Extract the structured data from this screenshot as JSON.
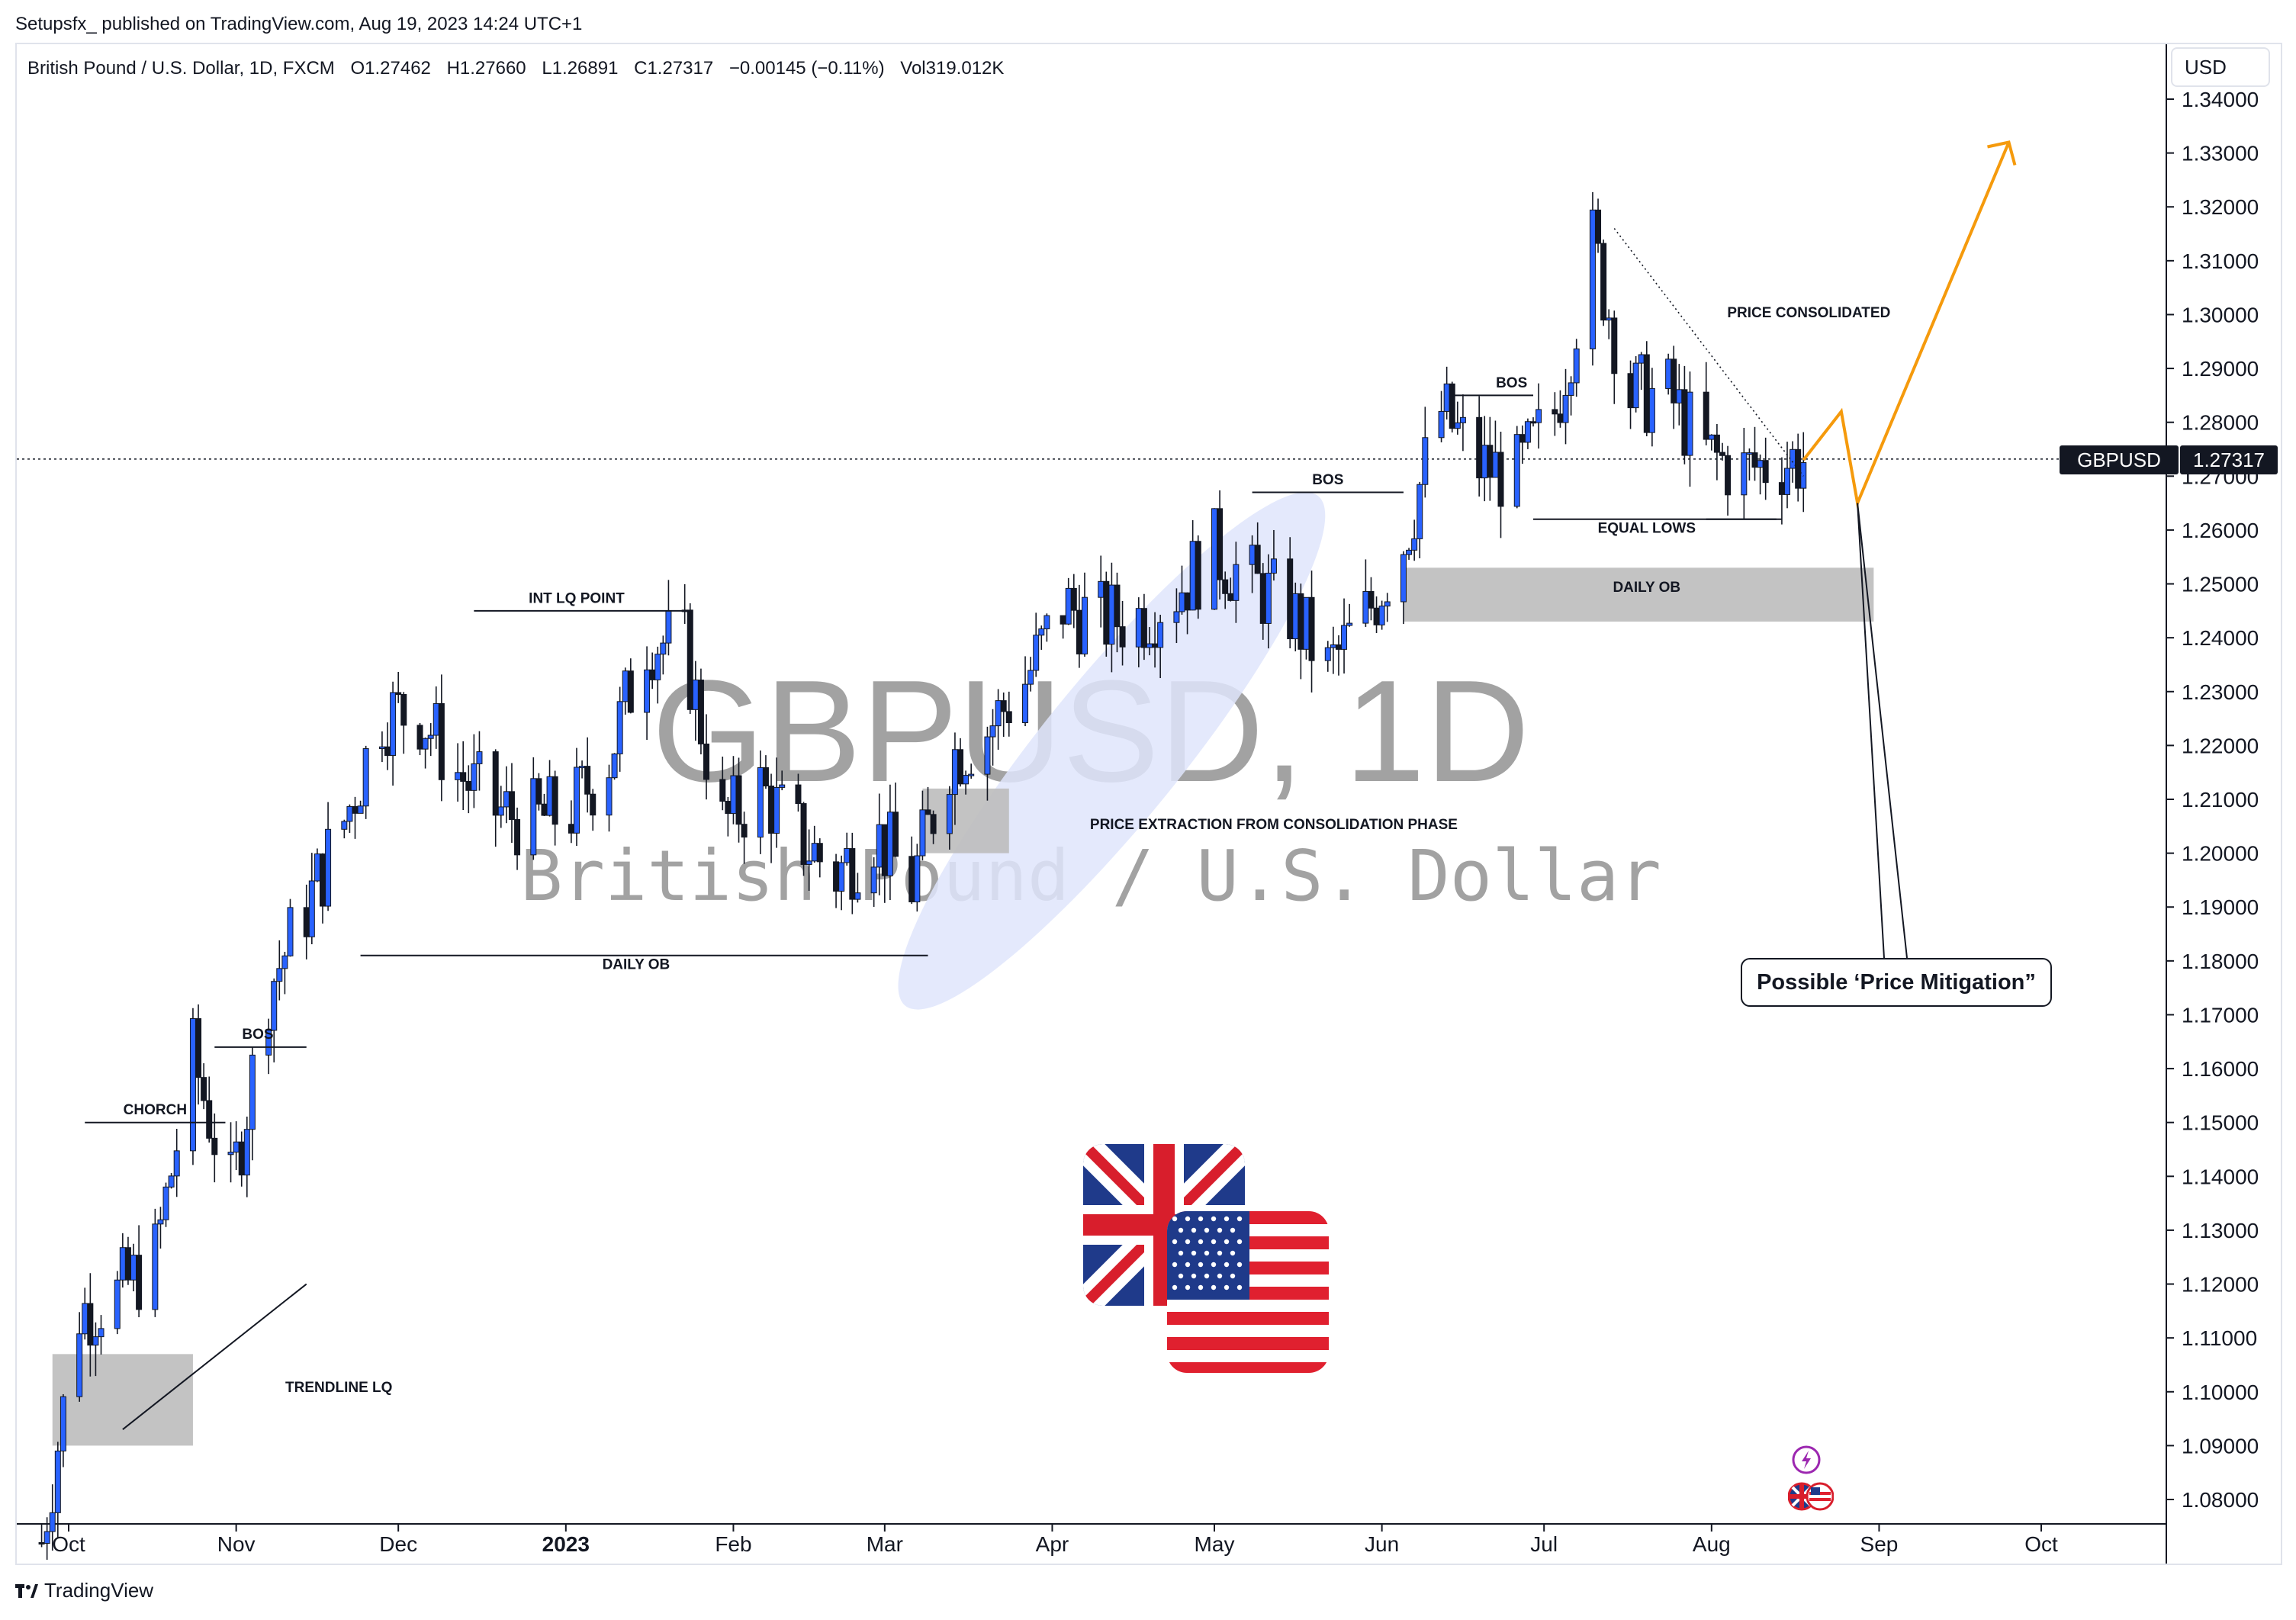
{
  "header": {
    "published_line": "Setupsfx_ published on TradingView.com, Aug 19, 2023 14:24 UTC+1"
  },
  "legend": {
    "symbol_name": "British Pound / U.S. Dollar, 1D, FXCM",
    "open": "O1.27462",
    "high": "H1.27660",
    "low": "L1.26891",
    "close": "C1.27317",
    "change": "−0.00145 (−0.11%)",
    "volume": "Vol319.012K"
  },
  "currency_label": "USD",
  "watermark": {
    "line1": "GBPUSD, 1D",
    "line2": "British Pound / U.S. Dollar"
  },
  "price_tag": {
    "symbol": "GBPUSD",
    "value": "1.27317"
  },
  "footer": {
    "brand": "TradingView"
  },
  "annotations": {
    "choch": "CHORCH",
    "bos_nov": "BOS",
    "trendline_lq": "TRENDLINE LQ",
    "daily_ob_1": "DAILY OB",
    "int_lq_point": "INT LQ POINT",
    "price_extraction": "PRICE EXTRACTION FROM CONSOLIDATION PHASE",
    "bos_may": "BOS",
    "bos_jun": "BOS",
    "equal_lows": "EQUAL LOWS",
    "daily_ob_2": "DAILY OB",
    "price_consolidated": "PRICE CONSOLIDATED",
    "possible_mitigation": "Possible ‘Price Mitigation”"
  },
  "colors": {
    "bull_candle": "#2962ff",
    "bear_candle": "#131722",
    "forecast": "#f59a0c",
    "zone": "#bdbdbd",
    "highlight": "#dfe5fb"
  },
  "chart_data": {
    "type": "candlestick",
    "symbol": "GBPUSD",
    "timeframe": "1D",
    "y_axis": {
      "range": [
        1.075,
        1.345
      ],
      "ticks": [
        "1.34000",
        "1.33000",
        "1.32000",
        "1.31000",
        "1.30000",
        "1.29000",
        "1.28000",
        "1.27000",
        "1.26000",
        "1.25000",
        "1.24000",
        "1.23000",
        "1.22000",
        "1.21000",
        "1.20000",
        "1.19000",
        "1.18000",
        "1.17000",
        "1.16000",
        "1.15000",
        "1.14000",
        "1.13000",
        "1.12000",
        "1.11000",
        "1.10000",
        "1.09000",
        "1.08000"
      ]
    },
    "x_axis": {
      "ticks": [
        {
          "label": "Oct",
          "date": "2022-10-01"
        },
        {
          "label": "Nov",
          "date": "2022-11-01"
        },
        {
          "label": "Dec",
          "date": "2022-12-01"
        },
        {
          "label": "2023",
          "date": "2023-01-01",
          "bold": true
        },
        {
          "label": "Feb",
          "date": "2023-02-01"
        },
        {
          "label": "Mar",
          "date": "2023-03-01"
        },
        {
          "label": "Apr",
          "date": "2023-04-01"
        },
        {
          "label": "May",
          "date": "2023-05-01"
        },
        {
          "label": "Jun",
          "date": "2023-06-01"
        },
        {
          "label": "Jul",
          "date": "2023-07-01"
        },
        {
          "label": "Aug",
          "date": "2023-08-01"
        },
        {
          "label": "Sep",
          "date": "2023-09-01"
        },
        {
          "label": "Oct",
          "date": "2023-10-01"
        }
      ]
    },
    "last_price": 1.27317,
    "close_path": [
      {
        "date": "2022-09-26",
        "close": 1.072
      },
      {
        "date": "2022-10-03",
        "close": 1.115
      },
      {
        "date": "2022-10-10",
        "close": 1.118
      },
      {
        "date": "2022-10-17",
        "close": 1.125
      },
      {
        "date": "2022-10-24",
        "close": 1.162
      },
      {
        "date": "2022-10-31",
        "close": 1.137
      },
      {
        "date": "2022-11-07",
        "close": 1.175
      },
      {
        "date": "2022-11-14",
        "close": 1.19
      },
      {
        "date": "2022-11-21",
        "close": 1.206
      },
      {
        "date": "2022-11-28",
        "close": 1.226
      },
      {
        "date": "2022-12-05",
        "close": 1.226
      },
      {
        "date": "2022-12-12",
        "close": 1.215
      },
      {
        "date": "2022-12-19",
        "close": 1.208
      },
      {
        "date": "2022-12-26",
        "close": 1.206
      },
      {
        "date": "2023-01-02",
        "close": 1.208
      },
      {
        "date": "2023-01-09",
        "close": 1.218
      },
      {
        "date": "2023-01-16",
        "close": 1.24
      },
      {
        "date": "2023-01-23",
        "close": 1.238
      },
      {
        "date": "2023-01-30",
        "close": 1.205
      },
      {
        "date": "2023-02-06",
        "close": 1.212
      },
      {
        "date": "2023-02-13",
        "close": 1.203
      },
      {
        "date": "2023-02-20",
        "close": 1.196
      },
      {
        "date": "2023-02-27",
        "close": 1.204
      },
      {
        "date": "2023-03-06",
        "close": 1.194
      },
      {
        "date": "2023-03-13",
        "close": 1.218
      },
      {
        "date": "2023-03-20",
        "close": 1.223
      },
      {
        "date": "2023-03-27",
        "close": 1.232
      },
      {
        "date": "2023-04-03",
        "close": 1.246
      },
      {
        "date": "2023-04-10",
        "close": 1.243
      },
      {
        "date": "2023-04-17",
        "close": 1.244
      },
      {
        "date": "2023-04-24",
        "close": 1.249
      },
      {
        "date": "2023-05-01",
        "close": 1.256
      },
      {
        "date": "2023-05-08",
        "close": 1.25
      },
      {
        "date": "2023-05-15",
        "close": 1.245
      },
      {
        "date": "2023-05-22",
        "close": 1.234
      },
      {
        "date": "2023-05-29",
        "close": 1.244
      },
      {
        "date": "2023-06-05",
        "close": 1.258
      },
      {
        "date": "2023-06-12",
        "close": 1.282
      },
      {
        "date": "2023-06-19",
        "close": 1.272
      },
      {
        "date": "2023-06-26",
        "close": 1.27
      },
      {
        "date": "2023-07-03",
        "close": 1.282
      },
      {
        "date": "2023-07-10",
        "close": 1.313
      },
      {
        "date": "2023-07-17",
        "close": 1.285
      },
      {
        "date": "2023-07-24",
        "close": 1.285
      },
      {
        "date": "2023-07-31",
        "close": 1.274
      },
      {
        "date": "2023-08-07",
        "close": 1.271
      },
      {
        "date": "2023-08-14",
        "close": 1.273
      }
    ],
    "forecast_path": [
      {
        "date": "2023-08-18",
        "price": 1.273
      },
      {
        "date": "2023-08-25",
        "price": 1.282
      },
      {
        "date": "2023-08-28",
        "price": 1.265
      },
      {
        "date": "2023-09-25",
        "price": 1.332
      }
    ],
    "zones": [
      {
        "label": "DAILY OB",
        "from": "2022-09-28",
        "to": "2022-10-24",
        "low": 1.09,
        "high": 1.107
      },
      {
        "label": "DAILY OB",
        "from": "2023-06-05",
        "to": "2023-08-31",
        "low": 1.243,
        "high": 1.253
      },
      {
        "label": "",
        "from": "2023-03-08",
        "to": "2023-03-24",
        "low": 1.2,
        "high": 1.212
      }
    ]
  }
}
